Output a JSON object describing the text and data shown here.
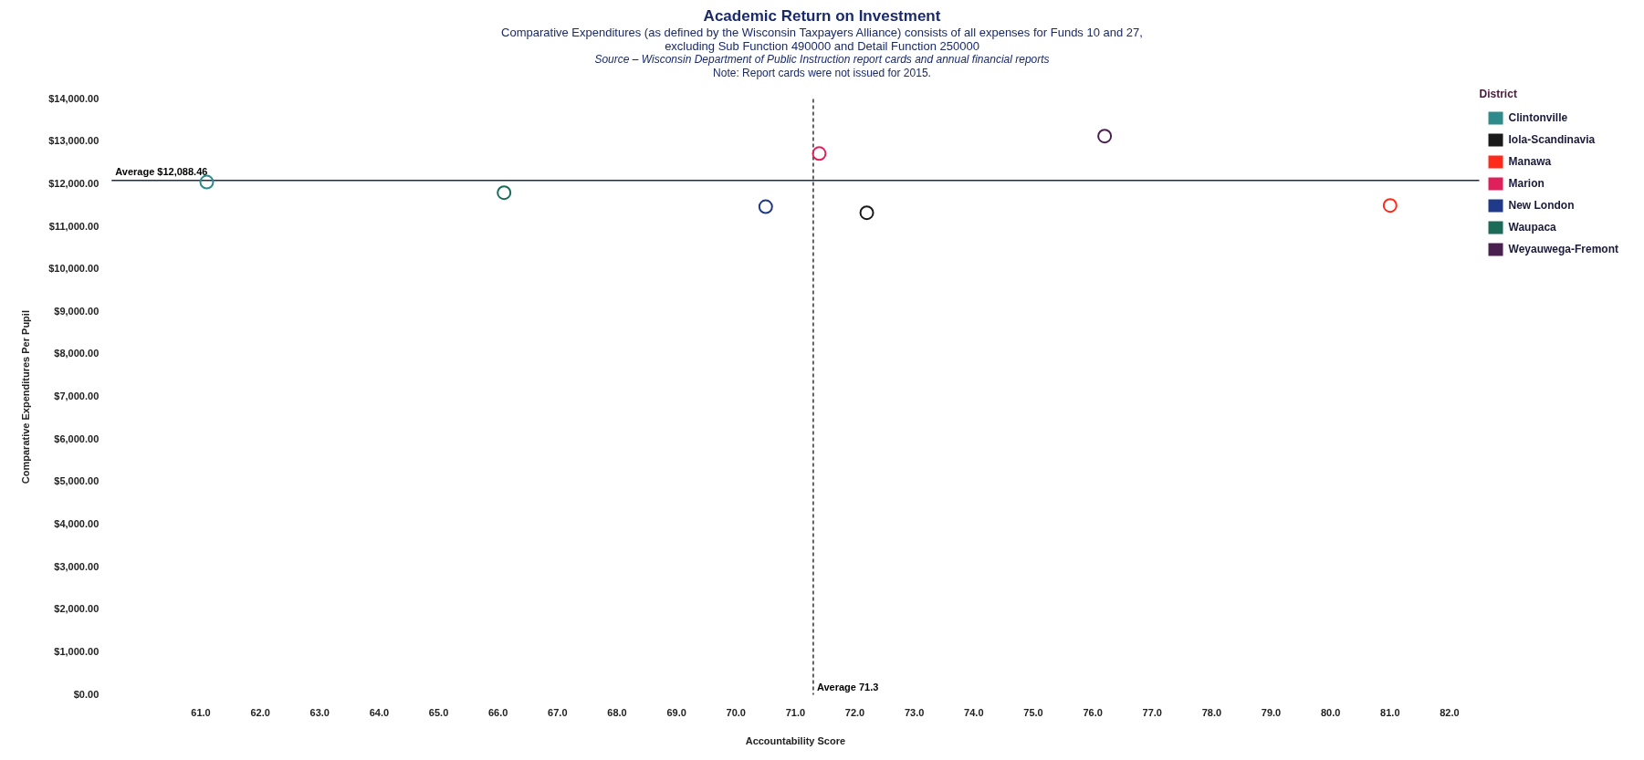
{
  "chart_data": {
    "type": "scatter",
    "title": "Academic Return on Investment",
    "subtitle": "Comparative Expenditures (as defined by the Wisconsin Taxpayers Alliance) consists of all expenses for Funds 10 and 27, excluding Sub Function 490000 and Detail Function 250000",
    "annotations": [
      "Source – Wisconsin Department of Public Instruction report cards and annual financial reports",
      "Note: Report cards were not issued for 2015."
    ],
    "xlabel": "Accountability Score",
    "ylabel": "Comparative Expenditures Per Pupil",
    "legend_title": "District",
    "legend": "top right",
    "marker": "circle",
    "grid": false,
    "xlim": [
      59.5,
      82.5
    ],
    "xticks": [
      {
        "value": 61,
        "label": "61.0"
      },
      {
        "value": 62,
        "label": "62.0"
      },
      {
        "value": 63,
        "label": "63.0"
      },
      {
        "value": 64,
        "label": "64.0"
      },
      {
        "value": 65,
        "label": "65.0"
      },
      {
        "value": 66,
        "label": "66.0"
      },
      {
        "value": 67,
        "label": "67.0"
      },
      {
        "value": 68,
        "label": "68.0"
      },
      {
        "value": 69,
        "label": "69.0"
      },
      {
        "value": 70,
        "label": "70.0"
      },
      {
        "value": 71,
        "label": "71.0"
      },
      {
        "value": 72,
        "label": "72.0"
      },
      {
        "value": 73,
        "label": "73.0"
      },
      {
        "value": 74,
        "label": "74.0"
      },
      {
        "value": 75,
        "label": "75.0"
      },
      {
        "value": 76,
        "label": "76.0"
      },
      {
        "value": 77,
        "label": "77.0"
      },
      {
        "value": 78,
        "label": "78.0"
      },
      {
        "value": 79,
        "label": "79.0"
      },
      {
        "value": 80,
        "label": "80.0"
      },
      {
        "value": 81,
        "label": "81.0"
      },
      {
        "value": 82,
        "label": "82.0"
      }
    ],
    "ylim": [
      0,
      14000
    ],
    "yticks": [
      {
        "value": 0,
        "label": "$0.00"
      },
      {
        "value": 1000,
        "label": "$1,000.00"
      },
      {
        "value": 2000,
        "label": "$2,000.00"
      },
      {
        "value": 3000,
        "label": "$3,000.00"
      },
      {
        "value": 4000,
        "label": "$4,000.00"
      },
      {
        "value": 5000,
        "label": "$5,000.00"
      },
      {
        "value": 6000,
        "label": "$6,000.00"
      },
      {
        "value": 7000,
        "label": "$7,000.00"
      },
      {
        "value": 8000,
        "label": "$8,000.00"
      },
      {
        "value": 9000,
        "label": "$9,000.00"
      },
      {
        "value": 10000,
        "label": "$10,000.00"
      },
      {
        "value": 11000,
        "label": "$11,000.00"
      },
      {
        "value": 12000,
        "label": "$12,000.00"
      },
      {
        "value": 13000,
        "label": "$13,000.00"
      },
      {
        "value": 14000,
        "label": "$14,000.00"
      }
    ],
    "ref_lines": [
      {
        "axis": "y",
        "value": 12088.46,
        "label": "Average $12,088.46",
        "color": "#1a2a5a",
        "line_style": "solid"
      },
      {
        "axis": "x",
        "value": 71.3,
        "label": "Average 71.3",
        "color": "#333333",
        "line_style": "dashed"
      }
    ],
    "series": [
      {
        "name": "Clintonville",
        "color": "#2e8b8b",
        "x": [
          61.1
        ],
        "values": [
          12050
        ]
      },
      {
        "name": "Iola-Scandinavia",
        "color": "#1a1a1a",
        "x": [
          72.2
        ],
        "values": [
          11330
        ]
      },
      {
        "name": "Manawa",
        "color": "#ff2a1a",
        "x": [
          81.0
        ],
        "values": [
          11500
        ]
      },
      {
        "name": "Marion",
        "color": "#e0205a",
        "x": [
          71.4
        ],
        "values": [
          12720
        ]
      },
      {
        "name": "New London",
        "color": "#1f3a8a",
        "x": [
          70.5
        ],
        "values": [
          11470
        ]
      },
      {
        "name": "Waupaca",
        "color": "#1a6b5a",
        "x": [
          66.1
        ],
        "values": [
          11800
        ]
      },
      {
        "name": "Weyauwega-Fremont",
        "color": "#4a2050",
        "x": [
          76.2
        ],
        "values": [
          13130
        ]
      }
    ]
  }
}
